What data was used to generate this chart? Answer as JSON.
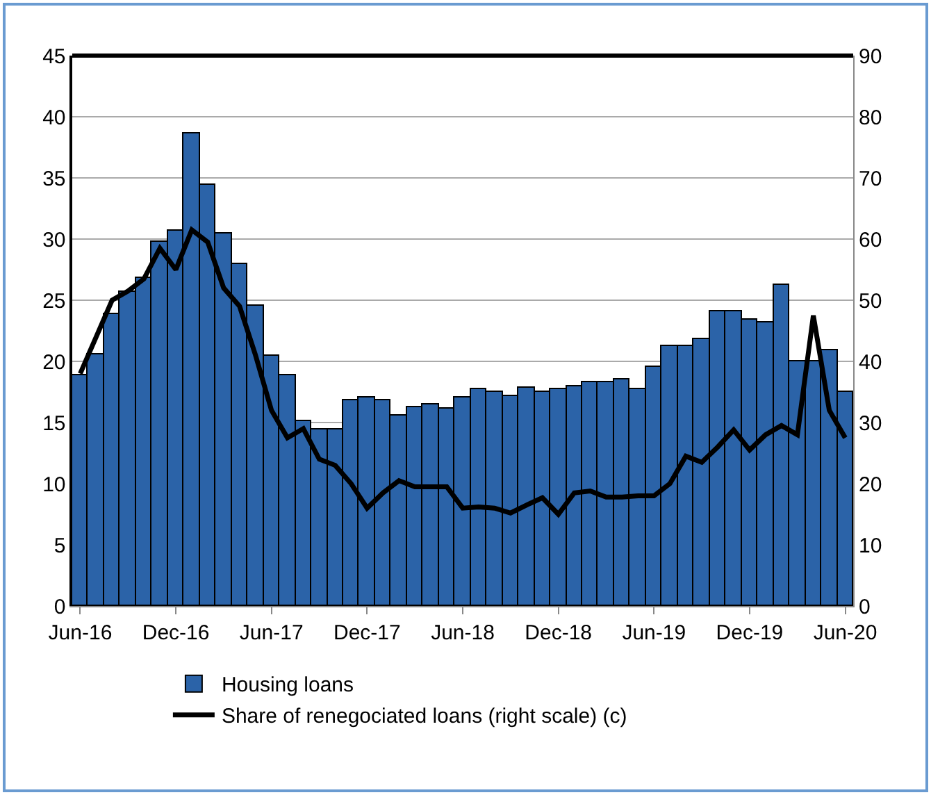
{
  "chart_data": {
    "type": "bar",
    "categories": [
      "Jun-16",
      null,
      null,
      null,
      null,
      null,
      "Dec-16",
      null,
      null,
      null,
      null,
      null,
      "Jun-17",
      null,
      null,
      null,
      null,
      null,
      "Dec-17",
      null,
      null,
      null,
      null,
      null,
      "Jun-18",
      null,
      null,
      null,
      null,
      null,
      "Dec-18",
      null,
      null,
      null,
      null,
      null,
      "Jun-19",
      null,
      null,
      null,
      null,
      null,
      "Dec-19",
      null,
      null,
      null,
      null,
      null,
      "Jun-20"
    ],
    "series": [
      {
        "name": "Housing loans",
        "color": "#2b63a8",
        "values": [
          18.9,
          20.6,
          23.9,
          25.7,
          26.8,
          29.8,
          30.7,
          38.6,
          34.4,
          30.4,
          27.9,
          24.6,
          20.4,
          18.9,
          15.1,
          14.4,
          14.4,
          16.8,
          17.0,
          16.8,
          15.6,
          16.3,
          16.5,
          16.1,
          17.0,
          17.7,
          17.5,
          17.2,
          17.8,
          17.5,
          17.7,
          17.9,
          18.3,
          18.3,
          18.5,
          17.7,
          19.6,
          21.3,
          21.3,
          21.8,
          24.1,
          24.1,
          23.4,
          23.2,
          26.3,
          20.0,
          20.0,
          20.9,
          17.5
        ]
      },
      {
        "name": "Share of renegociated loans (right scale) (c)",
        "type": "line",
        "axis": "y2",
        "color": "#000000",
        "values": [
          38,
          44,
          50,
          51.5,
          53.5,
          58.5,
          55,
          61.5,
          59.5,
          52,
          49,
          41,
          32,
          27.5,
          29,
          24,
          23,
          20,
          16,
          18.5,
          20.5,
          19.5,
          19.5,
          19.5,
          16,
          16.2,
          16,
          15.2,
          16.5,
          17.7,
          15,
          18.5,
          18.8,
          17.8,
          17.8,
          18,
          18,
          20,
          24.5,
          23.5,
          26,
          28.8,
          25.5,
          28,
          29.5,
          28,
          47.5,
          32,
          27.5
        ]
      }
    ],
    "ylim": [
      0,
      45
    ],
    "yticks": [
      0,
      5,
      10,
      15,
      20,
      25,
      30,
      35,
      40,
      45
    ],
    "y2lim": [
      0,
      90
    ],
    "y2ticks": [
      0,
      10,
      20,
      30,
      40,
      50,
      60,
      70,
      80,
      90
    ],
    "grid": "y",
    "legend": "bottom",
    "marker": "none",
    "line_style": "solid"
  }
}
